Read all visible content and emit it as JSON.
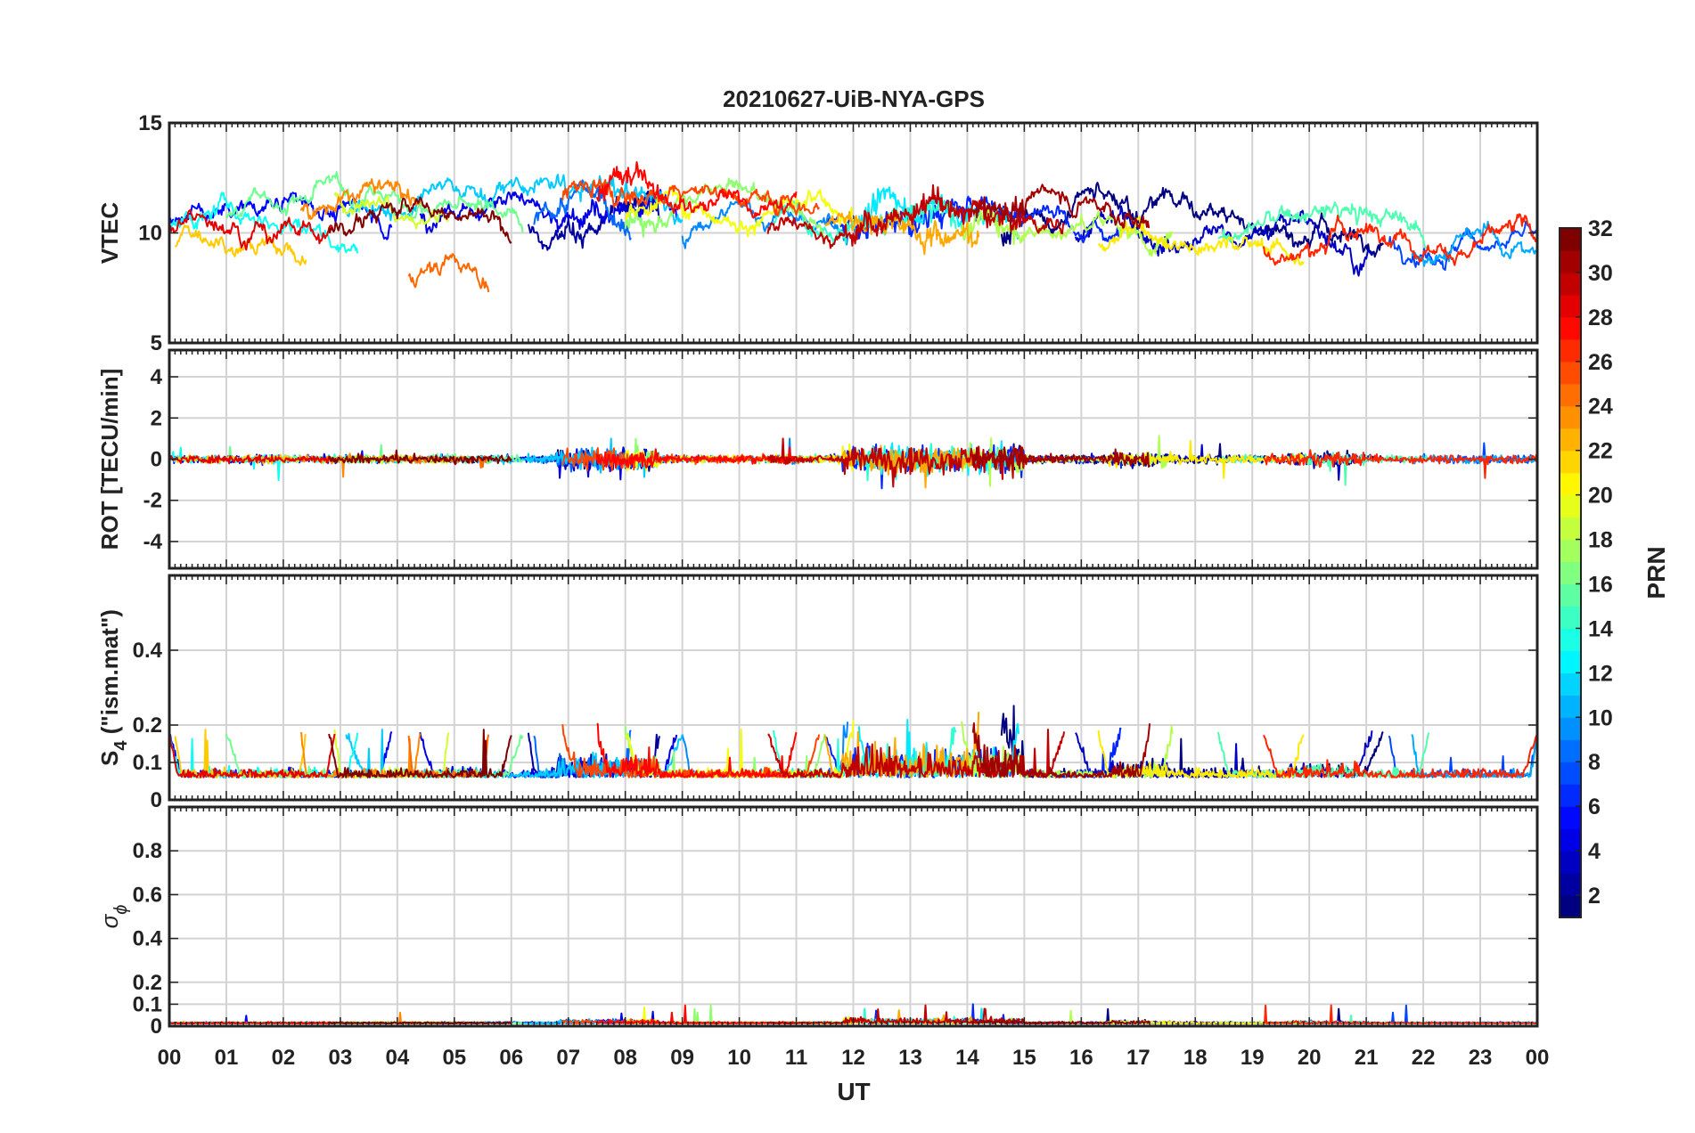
{
  "title": "20210627-UiB-NYA-GPS",
  "chart_data": {
    "type": "line",
    "title": "20210627-UiB-NYA-GPS",
    "xlabel": "UT",
    "x_ticks": [
      "00",
      "01",
      "02",
      "03",
      "04",
      "05",
      "06",
      "07",
      "08",
      "09",
      "10",
      "11",
      "12",
      "13",
      "14",
      "15",
      "16",
      "17",
      "18",
      "19",
      "20",
      "21",
      "22",
      "23",
      "00"
    ],
    "xlim": [
      0,
      24
    ],
    "panels": [
      {
        "id": "vtec",
        "ylabel": "VTEC",
        "ylim": [
          5,
          15
        ],
        "yticks": [
          5,
          10,
          15
        ],
        "ytick_labels": [
          "5",
          "10",
          "15"
        ]
      },
      {
        "id": "rot",
        "ylabel": "ROT [TECU/min]",
        "ylim": [
          -5.3,
          5.3
        ],
        "yticks": [
          -4,
          -2,
          0,
          2,
          4
        ],
        "ytick_labels": [
          "-4",
          "-2",
          "0",
          "2",
          "4"
        ]
      },
      {
        "id": "s4",
        "ylabel_main": "S",
        "ylabel_sub": "4",
        "ylabel_rest": " (\"ism.mat\")",
        "ylim": [
          0,
          0.6
        ],
        "yticks": [
          0,
          0.1,
          0.2,
          0.4
        ],
        "ytick_labels": [
          "0",
          "0.1",
          "0.2",
          "0.4"
        ]
      },
      {
        "id": "sigphi",
        "ylabel_main": "σ",
        "ylabel_sub": "ϕ",
        "ylim": [
          0,
          1
        ],
        "yticks": [
          0,
          0.1,
          0.2,
          0.4,
          0.6,
          0.8
        ],
        "ytick_labels": [
          "0",
          "0.1",
          "0.2",
          "0.4",
          "0.6",
          "0.8"
        ]
      }
    ],
    "colorbar": {
      "label": "PRN",
      "range": [
        1,
        32
      ],
      "ticks": [
        2,
        4,
        6,
        8,
        10,
        12,
        14,
        16,
        18,
        20,
        22,
        24,
        26,
        28,
        30,
        32
      ],
      "tick_labels": [
        "2",
        "4",
        "6",
        "8",
        "10",
        "12",
        "14",
        "16",
        "18",
        "20",
        "22",
        "24",
        "26",
        "28",
        "30",
        "32"
      ],
      "colormap": "jet"
    },
    "series": [
      {
        "prn": 1,
        "start": 14.6,
        "end": 21.3,
        "base": 9.7
      },
      {
        "prn": 2,
        "start": 6.3,
        "end": 8.6,
        "base": 10.2
      },
      {
        "prn": 3,
        "start": 15.9,
        "end": 21.1,
        "base": 9.8
      },
      {
        "prn": 4,
        "start": 4.4,
        "end": 8.9,
        "base": 10.8
      },
      {
        "prn": 5,
        "start": 0.0,
        "end": 3.9,
        "base": 10.4
      },
      {
        "prn": 6,
        "start": 11.5,
        "end": 16.7,
        "base": 10.3
      },
      {
        "prn": 7,
        "start": 21.4,
        "end": 24.0,
        "base": 9.6
      },
      {
        "prn": 8,
        "start": 6.4,
        "end": 8.1,
        "base": 10.3
      },
      {
        "prn": 9,
        "start": 9.0,
        "end": 11.9,
        "base": 9.6
      },
      {
        "prn": 10,
        "start": 21.8,
        "end": 24.0,
        "base": 9.0
      },
      {
        "prn": 11,
        "start": 3.1,
        "end": 9.0,
        "base": 11.0
      },
      {
        "prn": 12,
        "start": 12.1,
        "end": 14.9,
        "base": 10.4
      },
      {
        "prn": 13,
        "start": 0.0,
        "end": 3.3,
        "base": 10.0
      },
      {
        "prn": 14,
        "start": 10.6,
        "end": 13.8,
        "base": 10.6
      },
      {
        "prn": 15,
        "start": 18.4,
        "end": 22.1,
        "base": 9.8
      },
      {
        "prn": 16,
        "start": 1.0,
        "end": 6.2,
        "base": 10.9
      },
      {
        "prn": 17,
        "start": 8.0,
        "end": 11.5,
        "base": 10.5
      },
      {
        "prn": 18,
        "start": 13.9,
        "end": 17.6,
        "base": 9.9
      },
      {
        "prn": 19,
        "start": 2.9,
        "end": 4.9,
        "base": 11.5
      },
      {
        "prn": 20,
        "start": 8.0,
        "end": 12.0,
        "base": 10.7
      },
      {
        "prn": 21,
        "start": 16.3,
        "end": 19.9,
        "base": 9.4
      },
      {
        "prn": 22,
        "start": 0.1,
        "end": 2.4,
        "base": 9.3
      },
      {
        "prn": 23,
        "start": 11.5,
        "end": 14.2,
        "base": 10.3
      },
      {
        "prn": 24,
        "start": 2.3,
        "end": 4.4,
        "base": 11.2
      },
      {
        "prn": 25,
        "start": 4.2,
        "end": 5.6,
        "base": 8.0
      },
      {
        "prn": 26,
        "start": 6.9,
        "end": 11.4,
        "base": 11.6
      },
      {
        "prn": 27,
        "start": 19.2,
        "end": 24.0,
        "base": 9.4
      },
      {
        "prn": 28,
        "start": 7.5,
        "end": 11.0,
        "base": 11.5
      },
      {
        "prn": 29,
        "start": 0.0,
        "end": 2.9,
        "base": 10.4
      },
      {
        "prn": 30,
        "start": 10.5,
        "end": 15.7,
        "base": 10.2
      },
      {
        "prn": 31,
        "start": 14.1,
        "end": 17.2,
        "base": 10.7
      },
      {
        "prn": 32,
        "start": 2.8,
        "end": 6.0,
        "base": 10.3
      }
    ]
  }
}
